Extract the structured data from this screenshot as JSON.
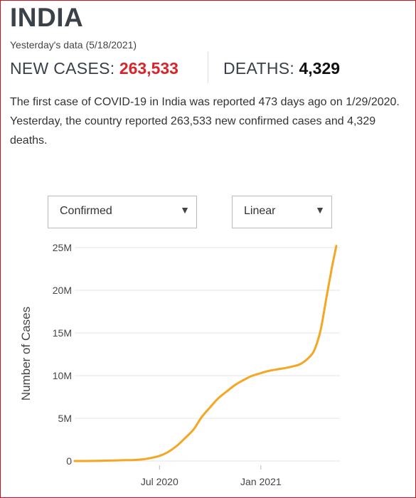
{
  "header": {
    "country": "INDIA",
    "as_of": "Yesterday's data (5/18/2021)",
    "new_cases_label": "NEW CASES:",
    "new_cases_value": "263,533",
    "deaths_label": "DEATHS:",
    "deaths_value": "4,329"
  },
  "summary": {
    "text_pre": "The first case of ",
    "text_bold": "COVID-19",
    "text_post": " in India was reported 473 days ago on 1/29/2020. Yesterday, the country reported 263,533 new confirmed cases and 4,329 deaths."
  },
  "controls": {
    "metric_select": {
      "value": "Confirmed",
      "caret": "▼"
    },
    "scale_select": {
      "value": "Linear",
      "caret": "▼"
    }
  },
  "colors": {
    "line": "#f5a623",
    "accent_red": "#d9252a",
    "grid": "#e6e6e6"
  },
  "chart_data": {
    "type": "line",
    "title": "",
    "xlabel": "",
    "ylabel": "Number of Cases",
    "y_ticks": [
      {
        "value": 0,
        "label": "0"
      },
      {
        "value": 5000000,
        "label": "5M"
      },
      {
        "value": 10000000,
        "label": "10M"
      },
      {
        "value": 15000000,
        "label": "15M"
      },
      {
        "value": 20000000,
        "label": "20M"
      },
      {
        "value": 25000000,
        "label": "25M"
      }
    ],
    "x_ticks": [
      {
        "date": "2020-07-01",
        "label": "Jul 2020"
      },
      {
        "date": "2021-01-01",
        "label": "Jan 2021"
      }
    ],
    "xlim": [
      "2020-01-29",
      "2021-05-18"
    ],
    "ylim": [
      0,
      25000000
    ],
    "grid": "horizontal",
    "series": [
      {
        "x": [
          "2020-01-29",
          "2020-03-01",
          "2020-04-01",
          "2020-05-01",
          "2020-05-15",
          "2020-06-01",
          "2020-06-15",
          "2020-07-01",
          "2020-07-15",
          "2020-08-01",
          "2020-08-15",
          "2020-09-01",
          "2020-09-15",
          "2020-10-01",
          "2020-10-15",
          "2020-11-01",
          "2020-11-15",
          "2020-12-01",
          "2020-12-15",
          "2021-01-01",
          "2021-01-15",
          "2021-02-01",
          "2021-02-15",
          "2021-03-01",
          "2021-03-15",
          "2021-04-01",
          "2021-04-10",
          "2021-04-20",
          "2021-05-01",
          "2021-05-10",
          "2021-05-18"
        ],
        "y": [
          0,
          10000,
          50000,
          100000,
          120000,
          200000,
          350000,
          600000,
          1000000,
          1750000,
          2600000,
          3700000,
          5100000,
          6300000,
          7300000,
          8200000,
          8900000,
          9500000,
          9950000,
          10300000,
          10550000,
          10750000,
          10900000,
          11100000,
          11400000,
          12300000,
          13300000,
          15500000,
          19500000,
          22700000,
          25200000
        ]
      }
    ]
  }
}
